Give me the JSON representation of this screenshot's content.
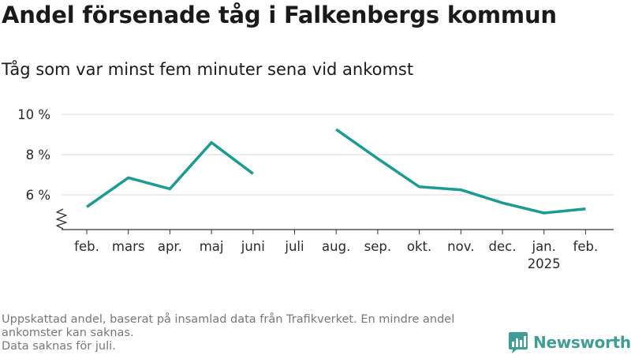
{
  "header": {
    "title": "Andel försenade tåg i Falkenbergs kommun",
    "subtitle": "Tåg som var minst fem minuter sena vid ankomst"
  },
  "footer": {
    "note_line1": "Uppskattad andel, baserat på insamlad data från Trafikverket. En mindre andel ankomster kan saknas.",
    "note_line2": "Data saknas för juli."
  },
  "brand": {
    "name": "Newsworthy",
    "icon": "newsworthy-logo-icon",
    "color": "#3f9d95"
  },
  "chart_data": {
    "type": "line",
    "title": "Andel försenade tåg i Falkenbergs kommun",
    "subtitle": "Tåg som var minst fem minuter sena vid ankomst",
    "categories": [
      "feb.",
      "mars",
      "apr.",
      "maj",
      "juni",
      "juli",
      "aug.",
      "sep.",
      "okt.",
      "nov.",
      "dec.",
      "jan.",
      "feb."
    ],
    "category_sublabels": [
      "",
      "",
      "",
      "",
      "",
      "",
      "",
      "",
      "",
      "",
      "",
      "2025",
      ""
    ],
    "series": [
      {
        "values": [
          5.4,
          6.85,
          6.3,
          8.6,
          7.05,
          null,
          9.25,
          7.8,
          6.4,
          6.25,
          5.6,
          5.1,
          5.3
        ],
        "color": "#1a9c93"
      }
    ],
    "yticks": [
      6,
      8,
      10
    ],
    "ytick_labels": [
      "6 %",
      "8 %",
      "10 %"
    ],
    "ylim": [
      4.3,
      10.2
    ],
    "axis_break": true,
    "grid": "horizontal",
    "legend": "none",
    "xlabel": "",
    "ylabel": ""
  }
}
